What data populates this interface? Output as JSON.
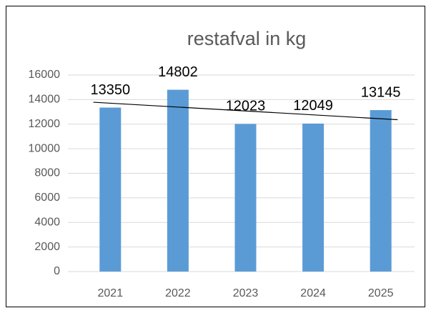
{
  "chart_data": {
    "type": "bar",
    "title": "restafval in kg",
    "categories": [
      "2021",
      "2022",
      "2023",
      "2024",
      "2025"
    ],
    "values": [
      13350,
      14802,
      12023,
      12049,
      13145
    ],
    "color": "#5b9bd5",
    "ylim": [
      0,
      16000
    ],
    "yticks": [
      0,
      2000,
      4000,
      6000,
      8000,
      10000,
      12000,
      14000,
      16000
    ],
    "grid": true,
    "trendline": true
  }
}
